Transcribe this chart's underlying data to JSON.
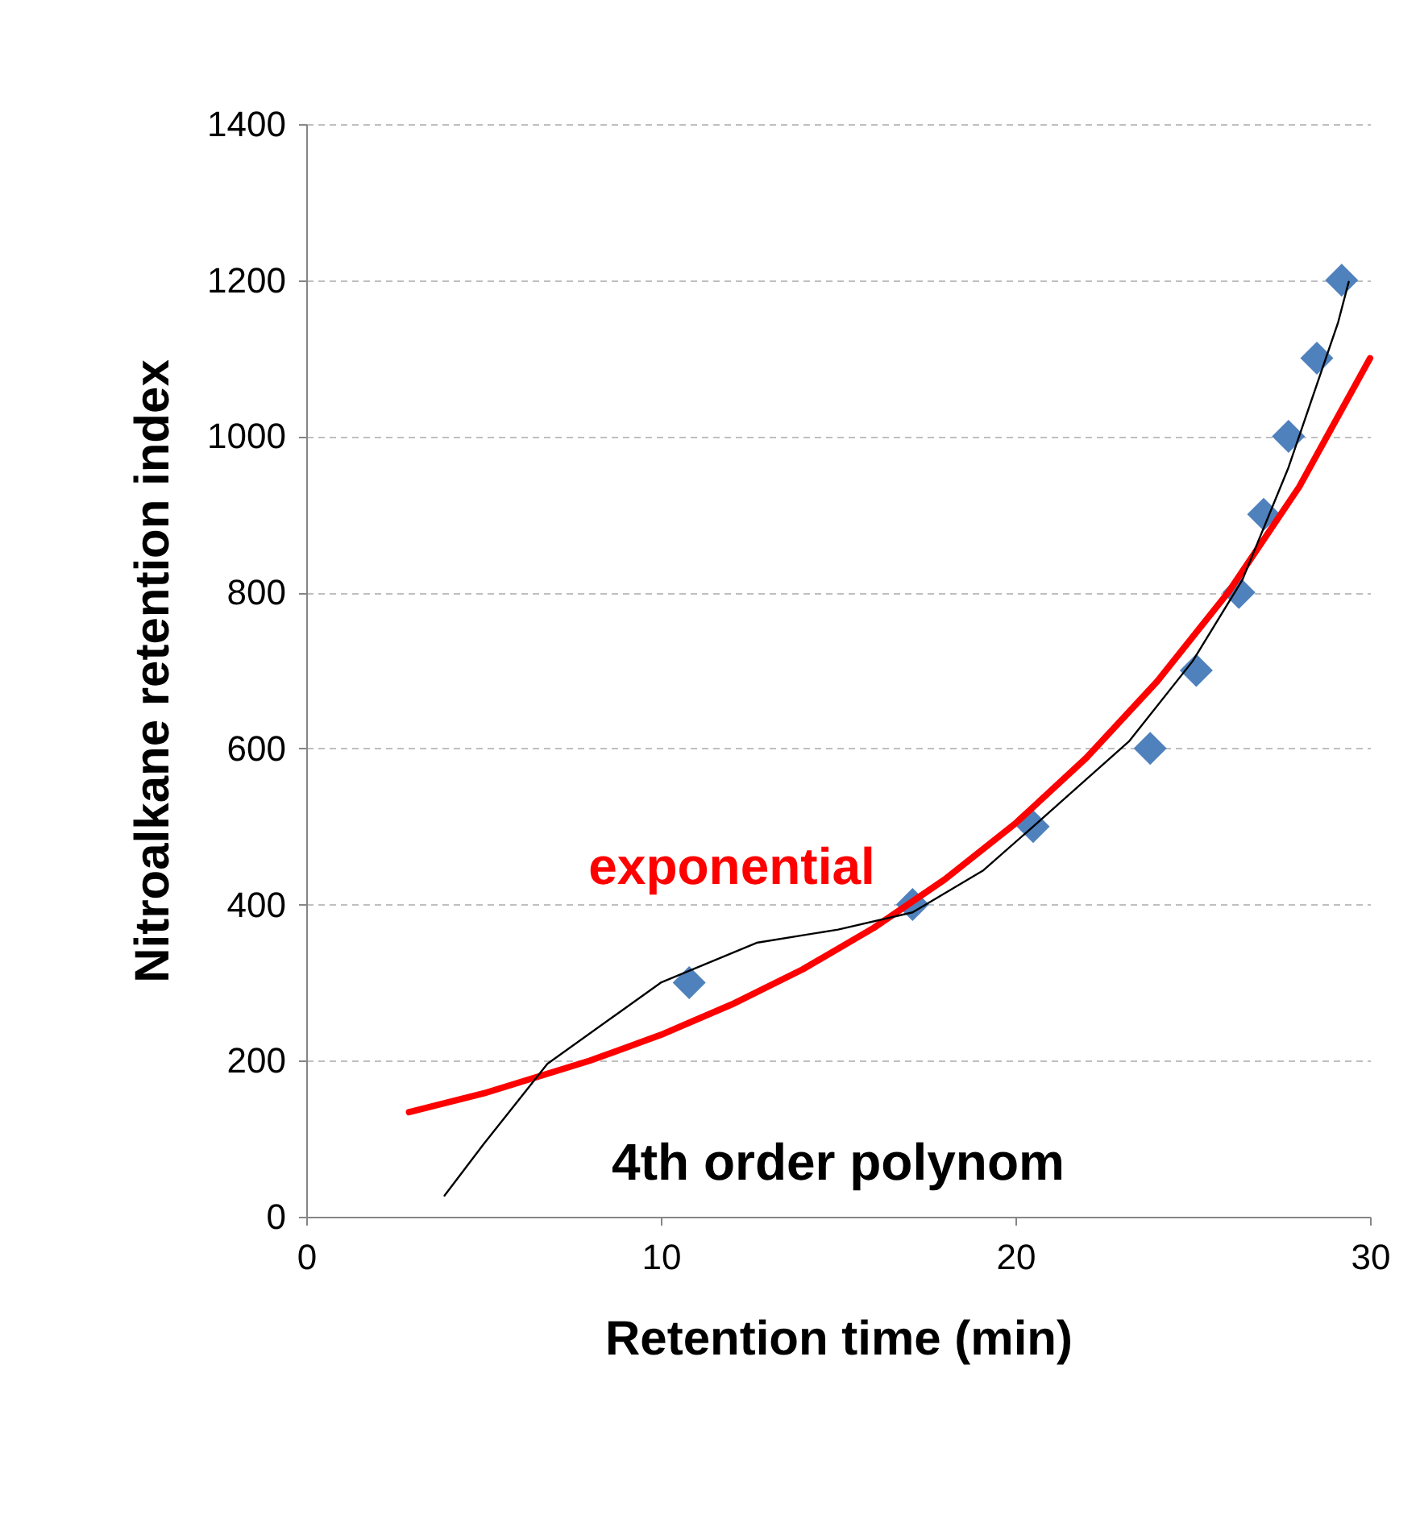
{
  "chart_data": {
    "type": "scatter",
    "xlabel": "Retention time (min)",
    "ylabel": "Nitroalkane retention index",
    "xlim": [
      0,
      30
    ],
    "xticks": [
      0,
      10,
      20,
      30
    ],
    "ylim": [
      0,
      1400
    ],
    "yticks": [
      0,
      200,
      400,
      600,
      800,
      1000,
      1200,
      1400
    ],
    "grid": "y",
    "legend": false,
    "series": [
      {
        "type": "scatter",
        "marker": "diamond",
        "color": "#4f81bd",
        "x": [
          10.8,
          17.1,
          20.5,
          23.8,
          25.1,
          26.3,
          27.0,
          27.7,
          28.5,
          29.2
        ],
        "values": [
          300,
          400,
          500,
          600,
          700,
          800,
          900,
          1000,
          1100,
          1200
        ]
      },
      {
        "type": "line",
        "name": "exponential",
        "color": "#ff0000",
        "x": [
          2.9,
          5,
          8,
          10,
          12,
          14,
          16,
          18,
          20,
          22,
          24,
          26,
          28,
          30
        ],
        "values": [
          134,
          158,
          200,
          233,
          272,
          317,
          370,
          432,
          504,
          588,
          686,
          800,
          935,
          1100
        ]
      },
      {
        "type": "line",
        "name": "4th order polynom",
        "color": "#000000",
        "x": [
          3.9,
          5,
          6.8,
          10,
          12.7,
          15,
          17.1,
          19.1,
          20.9,
          23.2,
          25,
          26.4,
          27.7,
          29.1,
          29.4
        ],
        "values": [
          27,
          93,
          196,
          300,
          351,
          368,
          390,
          444,
          516,
          609,
          712,
          816,
          960,
          1146,
          1198
        ]
      }
    ]
  }
}
